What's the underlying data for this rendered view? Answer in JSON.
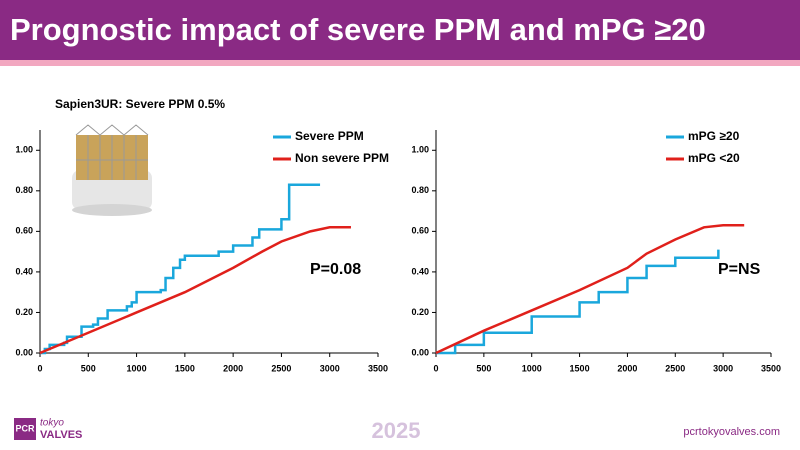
{
  "header": {
    "title": "Prognostic impact of severe PPM and mPG ≥20"
  },
  "footer": {
    "logo_mark": "PCR",
    "logo_top": "tokyo",
    "logo_bottom": "VALVES",
    "year": "2025",
    "url": "pcrtokyovalves.com"
  },
  "chart_data": [
    {
      "type": "line",
      "subtitle": "Sapien3UR: Severe PPM 0.5%",
      "annotation": "P=0.08",
      "legend": "upper right",
      "xlim": [
        0,
        3500
      ],
      "xticks": [
        0,
        500,
        1000,
        1500,
        2000,
        2500,
        3000,
        3500
      ],
      "ylim": [
        0,
        1.1
      ],
      "yticks": [
        {
          "value": 0,
          "label": "0.00"
        },
        {
          "value": 0.2,
          "label": "0.20"
        },
        {
          "value": 0.4,
          "label": "0.40"
        },
        {
          "value": 0.6,
          "label": "0.60"
        },
        {
          "value": 0.8,
          "label": "0.80"
        },
        {
          "value": 1,
          "label": "1.00"
        }
      ],
      "series": [
        {
          "name": "Severe PPM",
          "color": "#1aa7dc",
          "step": true,
          "x": [
            0,
            50,
            100,
            250,
            280,
            430,
            550,
            600,
            700,
            900,
            950,
            1000,
            1250,
            1300,
            1380,
            1450,
            1500,
            1850,
            2000,
            2200,
            2270,
            2500,
            2580,
            2900
          ],
          "values": [
            0,
            0.02,
            0.04,
            0.05,
            0.08,
            0.13,
            0.14,
            0.17,
            0.21,
            0.23,
            0.25,
            0.3,
            0.31,
            0.37,
            0.42,
            0.46,
            0.48,
            0.5,
            0.53,
            0.57,
            0.61,
            0.66,
            0.83,
            0.83
          ]
        },
        {
          "name": "Non severe PPM",
          "color": "#e0201b",
          "step": false,
          "x": [
            0,
            500,
            1000,
            1500,
            2000,
            2300,
            2500,
            2800,
            3000,
            3220
          ],
          "values": [
            0,
            0.1,
            0.2,
            0.3,
            0.42,
            0.5,
            0.55,
            0.6,
            0.62,
            0.62
          ]
        }
      ]
    },
    {
      "type": "line",
      "annotation": "P=NS",
      "legend": "upper right",
      "xlim": [
        0,
        3500
      ],
      "xticks": [
        0,
        500,
        1000,
        1500,
        2000,
        2500,
        3000,
        3500
      ],
      "ylim": [
        0,
        1.1
      ],
      "yticks": [
        {
          "value": 0,
          "label": "0.00"
        },
        {
          "value": 0.2,
          "label": "0.20"
        },
        {
          "value": 0.4,
          "label": "0.40"
        },
        {
          "value": 0.6,
          "label": "0.60"
        },
        {
          "value": 0.8,
          "label": "0.80"
        },
        {
          "value": 1,
          "label": "1.00"
        }
      ],
      "series": [
        {
          "name": "mPG ≥20",
          "color": "#1aa7dc",
          "step": true,
          "x": [
            0,
            200,
            500,
            1000,
            1500,
            1700,
            2000,
            2200,
            2500,
            2950
          ],
          "values": [
            0,
            0.04,
            0.1,
            0.18,
            0.25,
            0.3,
            0.37,
            0.43,
            0.47,
            0.51
          ]
        },
        {
          "name": "mPG <20",
          "color": "#e0201b",
          "step": false,
          "x": [
            0,
            500,
            1000,
            1500,
            2000,
            2200,
            2500,
            2800,
            3000,
            3220
          ],
          "values": [
            0,
            0.11,
            0.21,
            0.31,
            0.42,
            0.49,
            0.56,
            0.62,
            0.63,
            0.63
          ]
        }
      ]
    }
  ]
}
